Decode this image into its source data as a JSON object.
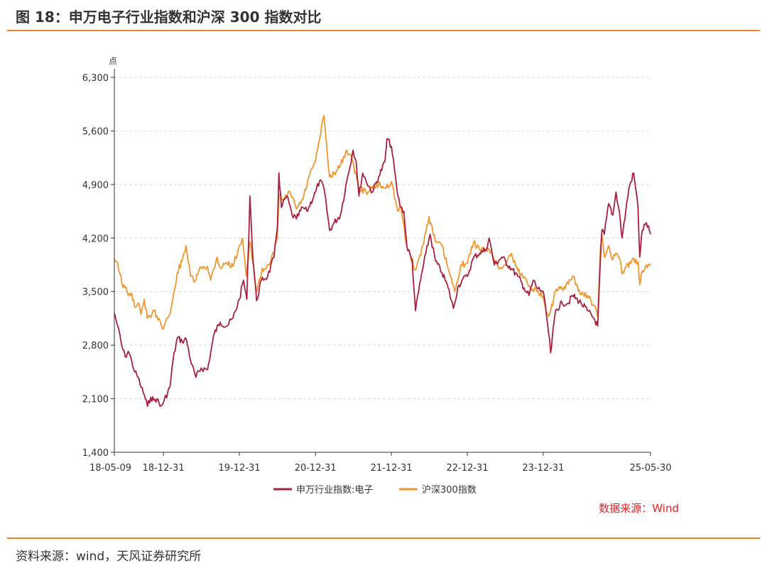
{
  "header": {
    "title": "图 18：申万电子行业指数和沪深 300 指数对比"
  },
  "footer": {
    "source": "资料来源：wind，天风证券研究所"
  },
  "colors": {
    "accent": "#e9822f",
    "series_electronics": "#a8203f",
    "series_hs300": "#f0962e",
    "note": "#e02020"
  },
  "chart_data": {
    "type": "line",
    "title": "",
    "xlabel": "",
    "ylabel": "点",
    "ylim": [
      1400,
      6300
    ],
    "yticks": [
      1400,
      2100,
      2800,
      3500,
      4200,
      4900,
      5600,
      6300
    ],
    "ytick_labels": [
      "1,400",
      "2,100",
      "2,800",
      "3,500",
      "4,200",
      "4,900",
      "5,600",
      "6,300"
    ],
    "xlim": [
      "2018-05-09",
      "2025-05-30"
    ],
    "xticks": [
      "2018-05-09",
      "2018-12-31",
      "2019-12-31",
      "2020-12-31",
      "2021-12-31",
      "2022-12-31",
      "2023-12-31",
      "2025-05-30"
    ],
    "xtick_labels": [
      "18-05-09",
      "18-12-31",
      "19-12-31",
      "20-12-31",
      "21-12-31",
      "22-12-31",
      "23-12-31",
      "25-05-30"
    ],
    "grid": "horizontal-dashed",
    "legend": "bottom-center",
    "source_note": "数据来源：Wind",
    "series": [
      {
        "name": "申万行业指数:电子",
        "points": [
          [
            "2018-05-09",
            3220
          ],
          [
            "2018-05-25",
            3050
          ],
          [
            "2018-06-15",
            2780
          ],
          [
            "2018-06-30",
            2650
          ],
          [
            "2018-07-15",
            2720
          ],
          [
            "2018-07-31",
            2600
          ],
          [
            "2018-08-15",
            2450
          ],
          [
            "2018-08-31",
            2380
          ],
          [
            "2018-09-15",
            2250
          ],
          [
            "2018-09-30",
            2150
          ],
          [
            "2018-10-15",
            2000
          ],
          [
            "2018-10-31",
            2120
          ],
          [
            "2018-11-15",
            2080
          ],
          [
            "2018-11-30",
            2100
          ],
          [
            "2018-12-15",
            2000
          ],
          [
            "2018-12-31",
            2050
          ],
          [
            "2019-01-31",
            2250
          ],
          [
            "2019-02-15",
            2600
          ],
          [
            "2019-03-08",
            2900
          ],
          [
            "2019-03-31",
            2850
          ],
          [
            "2019-04-20",
            2880
          ],
          [
            "2019-05-15",
            2550
          ],
          [
            "2019-06-05",
            2380
          ],
          [
            "2019-06-30",
            2500
          ],
          [
            "2019-07-31",
            2480
          ],
          [
            "2019-08-15",
            2700
          ],
          [
            "2019-09-01",
            2950
          ],
          [
            "2019-09-30",
            3100
          ],
          [
            "2019-10-31",
            3050
          ],
          [
            "2019-11-30",
            3150
          ],
          [
            "2019-12-31",
            3400
          ],
          [
            "2020-01-20",
            3650
          ],
          [
            "2020-02-05",
            3400
          ],
          [
            "2020-02-20",
            4750
          ],
          [
            "2020-03-05",
            3950
          ],
          [
            "2020-03-23",
            3380
          ],
          [
            "2020-04-15",
            3650
          ],
          [
            "2020-05-15",
            3700
          ],
          [
            "2020-06-15",
            3950
          ],
          [
            "2020-07-01",
            4350
          ],
          [
            "2020-07-08",
            5050
          ],
          [
            "2020-07-20",
            4600
          ],
          [
            "2020-08-15",
            4750
          ],
          [
            "2020-09-10",
            4500
          ],
          [
            "2020-09-30",
            4450
          ],
          [
            "2020-10-31",
            4600
          ],
          [
            "2020-11-20",
            4550
          ],
          [
            "2020-12-31",
            4800
          ],
          [
            "2021-01-20",
            4950
          ],
          [
            "2021-02-10",
            4850
          ],
          [
            "2021-03-09",
            4300
          ],
          [
            "2021-03-31",
            4400
          ],
          [
            "2021-04-30",
            4500
          ],
          [
            "2021-05-31",
            4950
          ],
          [
            "2021-06-30",
            5350
          ],
          [
            "2021-07-15",
            5200
          ],
          [
            "2021-07-28",
            4750
          ],
          [
            "2021-08-15",
            5050
          ],
          [
            "2021-08-31",
            4950
          ],
          [
            "2021-09-30",
            4800
          ],
          [
            "2021-10-31",
            5000
          ],
          [
            "2021-11-30",
            5200
          ],
          [
            "2021-12-10",
            5500
          ],
          [
            "2021-12-31",
            5400
          ],
          [
            "2022-01-31",
            4750
          ],
          [
            "2022-02-15",
            4600
          ],
          [
            "2022-03-01",
            4550
          ],
          [
            "2022-03-15",
            4100
          ],
          [
            "2022-04-10",
            3900
          ],
          [
            "2022-04-26",
            3250
          ],
          [
            "2022-05-20",
            3650
          ],
          [
            "2022-06-15",
            4000
          ],
          [
            "2022-07-05",
            4250
          ],
          [
            "2022-07-31",
            3900
          ],
          [
            "2022-08-31",
            3750
          ],
          [
            "2022-09-30",
            3550
          ],
          [
            "2022-10-25",
            3280
          ],
          [
            "2022-11-15",
            3550
          ],
          [
            "2022-12-05",
            3650
          ],
          [
            "2022-12-31",
            3700
          ],
          [
            "2023-01-31",
            3950
          ],
          [
            "2023-02-28",
            4000
          ],
          [
            "2023-03-31",
            4050
          ],
          [
            "2023-04-15",
            4200
          ],
          [
            "2023-05-10",
            3850
          ],
          [
            "2023-06-15",
            3950
          ],
          [
            "2023-07-31",
            3800
          ],
          [
            "2023-08-31",
            3700
          ],
          [
            "2023-09-30",
            3550
          ],
          [
            "2023-10-23",
            3450
          ],
          [
            "2023-11-15",
            3650
          ],
          [
            "2023-11-30",
            3550
          ],
          [
            "2023-12-31",
            3500
          ],
          [
            "2024-01-20",
            3100
          ],
          [
            "2024-02-05",
            2700
          ],
          [
            "2024-02-28",
            3250
          ],
          [
            "2024-03-31",
            3350
          ],
          [
            "2024-04-30",
            3350
          ],
          [
            "2024-05-20",
            3450
          ],
          [
            "2024-06-30",
            3350
          ],
          [
            "2024-07-31",
            3250
          ],
          [
            "2024-08-31",
            3150
          ],
          [
            "2024-09-18",
            3050
          ],
          [
            "2024-09-30",
            3850
          ],
          [
            "2024-10-08",
            4300
          ],
          [
            "2024-10-20",
            4250
          ],
          [
            "2024-11-10",
            4650
          ],
          [
            "2024-11-30",
            4500
          ],
          [
            "2024-12-15",
            4800
          ],
          [
            "2024-12-31",
            4550
          ],
          [
            "2025-01-13",
            4200
          ],
          [
            "2025-01-31",
            4550
          ],
          [
            "2025-02-15",
            4850
          ],
          [
            "2025-03-10",
            5050
          ],
          [
            "2025-03-31",
            4600
          ],
          [
            "2025-04-08",
            3950
          ],
          [
            "2025-04-20",
            4300
          ],
          [
            "2025-05-10",
            4400
          ],
          [
            "2025-05-30",
            4250
          ]
        ]
      },
      {
        "name": "沪深300指数",
        "points": [
          [
            "2018-05-09",
            3930
          ],
          [
            "2018-05-25",
            3880
          ],
          [
            "2018-06-15",
            3600
          ],
          [
            "2018-06-30",
            3550
          ],
          [
            "2018-07-15",
            3450
          ],
          [
            "2018-07-31",
            3480
          ],
          [
            "2018-08-15",
            3300
          ],
          [
            "2018-08-31",
            3350
          ],
          [
            "2018-09-15",
            3200
          ],
          [
            "2018-09-30",
            3400
          ],
          [
            "2018-10-15",
            3150
          ],
          [
            "2018-10-31",
            3160
          ],
          [
            "2018-11-15",
            3250
          ],
          [
            "2018-11-30",
            3180
          ],
          [
            "2018-12-15",
            3120
          ],
          [
            "2018-12-31",
            3010
          ],
          [
            "2019-01-15",
            3150
          ],
          [
            "2019-01-31",
            3200
          ],
          [
            "2019-02-25",
            3550
          ],
          [
            "2019-03-08",
            3750
          ],
          [
            "2019-03-31",
            3900
          ],
          [
            "2019-04-19",
            4100
          ],
          [
            "2019-05-10",
            3700
          ],
          [
            "2019-05-31",
            3630
          ],
          [
            "2019-06-30",
            3820
          ],
          [
            "2019-07-31",
            3830
          ],
          [
            "2019-08-15",
            3650
          ],
          [
            "2019-09-15",
            3950
          ],
          [
            "2019-09-30",
            3810
          ],
          [
            "2019-10-31",
            3880
          ],
          [
            "2019-11-30",
            3830
          ],
          [
            "2019-12-31",
            4100
          ],
          [
            "2020-01-15",
            4200
          ],
          [
            "2020-02-03",
            3700
          ],
          [
            "2020-02-20",
            4150
          ],
          [
            "2020-03-23",
            3500
          ],
          [
            "2020-04-15",
            3750
          ],
          [
            "2020-05-15",
            3850
          ],
          [
            "2020-06-15",
            4000
          ],
          [
            "2020-07-01",
            4200
          ],
          [
            "2020-07-08",
            4750
          ],
          [
            "2020-07-31",
            4700
          ],
          [
            "2020-08-31",
            4800
          ],
          [
            "2020-09-30",
            4580
          ],
          [
            "2020-10-31",
            4700
          ],
          [
            "2020-11-30",
            5000
          ],
          [
            "2020-12-31",
            5200
          ],
          [
            "2021-01-20",
            5500
          ],
          [
            "2021-02-10",
            5800
          ],
          [
            "2021-02-26",
            5300
          ],
          [
            "2021-03-09",
            5000
          ],
          [
            "2021-03-31",
            5050
          ],
          [
            "2021-04-30",
            5150
          ],
          [
            "2021-05-31",
            5350
          ],
          [
            "2021-06-30",
            5200
          ],
          [
            "2021-07-28",
            4850
          ],
          [
            "2021-08-31",
            4800
          ],
          [
            "2021-09-30",
            4850
          ],
          [
            "2021-10-31",
            4900
          ],
          [
            "2021-11-30",
            4850
          ],
          [
            "2021-12-31",
            4940
          ],
          [
            "2022-01-31",
            4550
          ],
          [
            "2022-02-15",
            4600
          ],
          [
            "2022-03-15",
            4100
          ],
          [
            "2022-04-26",
            3780
          ],
          [
            "2022-05-31",
            4100
          ],
          [
            "2022-06-30",
            4480
          ],
          [
            "2022-07-31",
            4150
          ],
          [
            "2022-08-31",
            4100
          ],
          [
            "2022-09-30",
            3800
          ],
          [
            "2022-10-31",
            3500
          ],
          [
            "2022-11-30",
            3850
          ],
          [
            "2022-12-31",
            3870
          ],
          [
            "2023-01-31",
            4150
          ],
          [
            "2023-02-28",
            4050
          ],
          [
            "2023-03-31",
            4050
          ],
          [
            "2023-04-30",
            4000
          ],
          [
            "2023-05-31",
            3800
          ],
          [
            "2023-06-30",
            3850
          ],
          [
            "2023-07-31",
            4000
          ],
          [
            "2023-08-31",
            3770
          ],
          [
            "2023-09-30",
            3690
          ],
          [
            "2023-10-31",
            3570
          ],
          [
            "2023-11-30",
            3500
          ],
          [
            "2023-12-31",
            3430
          ],
          [
            "2024-01-22",
            3200
          ],
          [
            "2024-02-05",
            3250
          ],
          [
            "2024-02-28",
            3500
          ],
          [
            "2024-03-31",
            3540
          ],
          [
            "2024-04-30",
            3600
          ],
          [
            "2024-05-20",
            3700
          ],
          [
            "2024-06-30",
            3460
          ],
          [
            "2024-07-31",
            3450
          ],
          [
            "2024-08-31",
            3320
          ],
          [
            "2024-09-18",
            3170
          ],
          [
            "2024-09-30",
            4000
          ],
          [
            "2024-10-08",
            4250
          ],
          [
            "2024-10-20",
            3950
          ],
          [
            "2024-11-10",
            4100
          ],
          [
            "2024-11-30",
            3920
          ],
          [
            "2024-12-15",
            4000
          ],
          [
            "2024-12-31",
            3940
          ],
          [
            "2025-01-13",
            3730
          ],
          [
            "2025-01-31",
            3820
          ],
          [
            "2025-02-28",
            3900
          ],
          [
            "2025-03-31",
            3890
          ],
          [
            "2025-04-08",
            3590
          ],
          [
            "2025-04-20",
            3770
          ],
          [
            "2025-05-10",
            3850
          ],
          [
            "2025-05-30",
            3840
          ]
        ]
      }
    ]
  }
}
